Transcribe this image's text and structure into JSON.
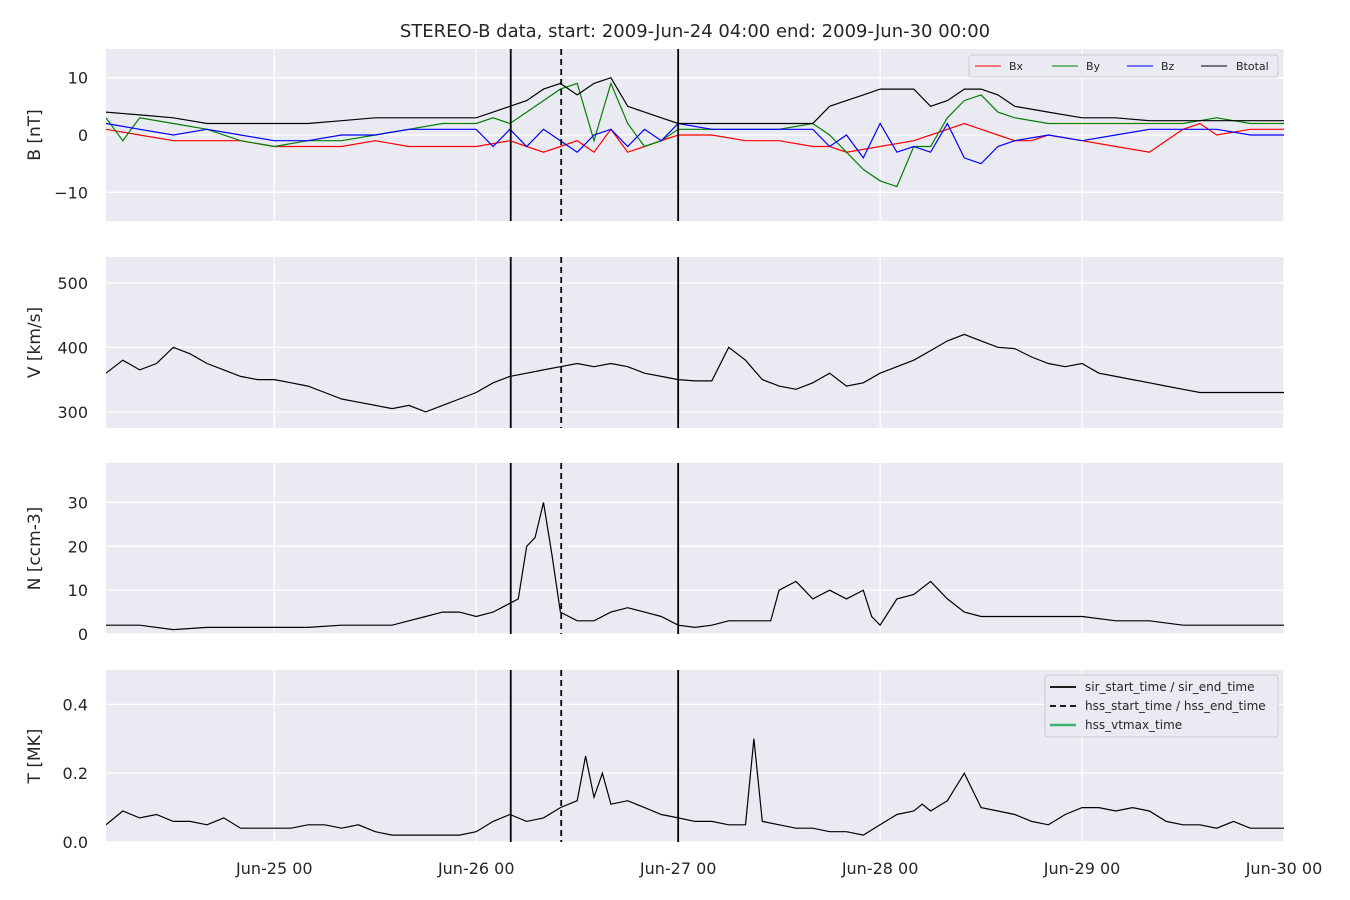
{
  "title": "STEREO-B data, start: 2009-Jun-24 04:00  end: 2009-Jun-30 00:00",
  "x_tick_labels": [
    "Jun-25 00",
    "Jun-26 00",
    "Jun-27 00",
    "Jun-28 00",
    "Jun-29 00",
    "Jun-30 00"
  ],
  "colors": {
    "background": "#eaeaf2",
    "grid": "#ffffff",
    "bx": "#ff0000",
    "by": "#008000",
    "bz": "#0000ff",
    "btotal": "#000000",
    "vtmax": "#3cb371"
  },
  "chart_data": [
    {
      "type": "line",
      "panel": "magnetic_field",
      "ylabel": "B [nT]",
      "xlim": [
        4,
        144
      ],
      "x_units": "hours since 2009-Jun-24 00:00",
      "ylim": [
        -15,
        15
      ],
      "yticks": [
        -10,
        0,
        10
      ],
      "ytick_labels": [
        "−10",
        "0",
        "10"
      ],
      "grid": true,
      "legend": "top-right",
      "series": [
        {
          "name": "Bx",
          "color": "#ff0000",
          "x": [
            4,
            8,
            12,
            16,
            20,
            24,
            28,
            32,
            36,
            40,
            44,
            48,
            52,
            54,
            56,
            58,
            60,
            62,
            64,
            66,
            68,
            70,
            72,
            76,
            80,
            84,
            88,
            90,
            92,
            96,
            100,
            102,
            104,
            106,
            108,
            110,
            112,
            114,
            116,
            120,
            124,
            128,
            130,
            132,
            134,
            136,
            140,
            144
          ],
          "y": [
            1,
            0,
            -1,
            -1,
            -1,
            -2,
            -2,
            -2,
            -1,
            -2,
            -2,
            -2,
            -1,
            -2,
            -3,
            -2,
            -1,
            -3,
            1,
            -3,
            -2,
            -1,
            0,
            0,
            -1,
            -1,
            -2,
            -2,
            -3,
            -2,
            -1,
            0,
            1,
            2,
            1,
            0,
            -1,
            -1,
            0,
            -1,
            -2,
            -3,
            -1,
            1,
            2,
            0,
            1,
            1
          ]
        },
        {
          "name": "By",
          "color": "#008000",
          "x": [
            4,
            6,
            8,
            12,
            16,
            20,
            24,
            28,
            32,
            36,
            40,
            44,
            48,
            50,
            52,
            54,
            56,
            58,
            60,
            62,
            64,
            66,
            68,
            70,
            72,
            76,
            80,
            84,
            88,
            90,
            92,
            94,
            96,
            98,
            100,
            102,
            104,
            106,
            108,
            110,
            112,
            116,
            120,
            124,
            128,
            132,
            136,
            140,
            144
          ],
          "y": [
            3,
            -1,
            3,
            2,
            1,
            -1,
            -2,
            -1,
            -1,
            0,
            1,
            2,
            2,
            3,
            2,
            4,
            6,
            8,
            9,
            -1,
            9,
            2,
            -2,
            -1,
            1,
            1,
            1,
            1,
            2,
            0,
            -3,
            -6,
            -8,
            -9,
            -2,
            -2,
            3,
            6,
            7,
            4,
            3,
            2,
            2,
            2,
            2,
            2,
            3,
            2,
            2
          ]
        },
        {
          "name": "Bz",
          "color": "#0000ff",
          "x": [
            4,
            8,
            12,
            16,
            20,
            24,
            28,
            32,
            36,
            40,
            44,
            48,
            50,
            52,
            54,
            56,
            58,
            60,
            62,
            64,
            66,
            68,
            70,
            72,
            76,
            80,
            84,
            88,
            90,
            92,
            94,
            96,
            98,
            100,
            102,
            104,
            106,
            108,
            110,
            112,
            116,
            120,
            124,
            128,
            132,
            136,
            140,
            144
          ],
          "y": [
            2,
            1,
            0,
            1,
            0,
            -1,
            -1,
            0,
            0,
            1,
            1,
            1,
            -2,
            1,
            -2,
            1,
            -1,
            -3,
            0,
            1,
            -2,
            1,
            -1,
            2,
            1,
            1,
            1,
            1,
            -2,
            0,
            -4,
            2,
            -3,
            -2,
            -3,
            2,
            -4,
            -5,
            -2,
            -1,
            0,
            -1,
            0,
            1,
            1,
            1,
            0,
            0
          ]
        },
        {
          "name": "Btotal",
          "color": "#000000",
          "x": [
            4,
            8,
            12,
            16,
            20,
            24,
            28,
            32,
            36,
            40,
            44,
            48,
            50,
            52,
            54,
            56,
            58,
            60,
            62,
            64,
            66,
            68,
            70,
            72,
            76,
            80,
            84,
            88,
            90,
            92,
            94,
            96,
            98,
            100,
            102,
            104,
            106,
            108,
            110,
            112,
            116,
            120,
            124,
            128,
            132,
            136,
            140,
            144
          ],
          "y": [
            4,
            3.5,
            3,
            2,
            2,
            2,
            2,
            2.5,
            3,
            3,
            3,
            3,
            4,
            5,
            6,
            8,
            9,
            7,
            9,
            10,
            5,
            4,
            3,
            2,
            2,
            2,
            2,
            2,
            5,
            6,
            7,
            8,
            8,
            8,
            5,
            6,
            8,
            8,
            7,
            5,
            4,
            3,
            3,
            2.5,
            2.5,
            2.5,
            2.5,
            2.5
          ]
        }
      ]
    },
    {
      "type": "line",
      "panel": "speed",
      "ylabel": "V [km/s]",
      "xlim": [
        4,
        144
      ],
      "ylim": [
        275,
        540
      ],
      "yticks": [
        300,
        400,
        500
      ],
      "grid": true,
      "series": [
        {
          "color": "#000000",
          "x": [
            4,
            6,
            8,
            10,
            12,
            14,
            16,
            18,
            20,
            22,
            24,
            26,
            28,
            30,
            32,
            34,
            36,
            38,
            40,
            42,
            44,
            46,
            48,
            50,
            52,
            54,
            56,
            58,
            60,
            62,
            64,
            66,
            68,
            70,
            72,
            74,
            76,
            78,
            80,
            82,
            83,
            84,
            86,
            88,
            90,
            92,
            94,
            96,
            98,
            100,
            102,
            104,
            106,
            108,
            110,
            112,
            114,
            116,
            118,
            120,
            122,
            124,
            126,
            128,
            130,
            132,
            134,
            136,
            138,
            140,
            142,
            144
          ],
          "y": [
            360,
            380,
            365,
            375,
            400,
            390,
            375,
            365,
            355,
            350,
            350,
            345,
            340,
            330,
            320,
            315,
            310,
            305,
            310,
            300,
            310,
            320,
            330,
            345,
            355,
            360,
            365,
            370,
            375,
            370,
            375,
            370,
            360,
            355,
            350,
            348,
            348,
            400,
            380,
            350,
            345,
            340,
            335,
            345,
            360,
            340,
            345,
            360,
            370,
            380,
            395,
            410,
            420,
            410,
            400,
            398,
            385,
            375,
            370,
            375,
            360,
            355,
            350,
            345,
            340,
            335,
            330,
            330,
            330,
            330,
            330,
            330
          ]
        }
      ]
    },
    {
      "type": "line",
      "panel": "density",
      "ylabel": "N [ccm-3]",
      "xlim": [
        4,
        144
      ],
      "ylim": [
        0,
        39
      ],
      "yticks": [
        0,
        10,
        20,
        30
      ],
      "grid": true,
      "series": [
        {
          "color": "#000000",
          "x": [
            4,
            8,
            12,
            16,
            20,
            24,
            28,
            32,
            36,
            38,
            40,
            42,
            44,
            46,
            48,
            50,
            51,
            52,
            53,
            54,
            55,
            56,
            57,
            58,
            60,
            62,
            64,
            66,
            68,
            70,
            72,
            74,
            76,
            78,
            80,
            82,
            83,
            84,
            86,
            88,
            90,
            92,
            94,
            95,
            96,
            98,
            100,
            102,
            104,
            106,
            108,
            110,
            112,
            116,
            120,
            124,
            128,
            132,
            136,
            140,
            144
          ],
          "y": [
            2,
            2,
            1,
            1.5,
            1.5,
            1.5,
            1.5,
            2,
            2,
            2,
            3,
            4,
            5,
            5,
            4,
            5,
            6,
            7,
            8,
            20,
            22,
            30,
            18,
            5,
            3,
            3,
            5,
            6,
            5,
            4,
            2,
            1.5,
            2,
            3,
            3,
            3,
            3,
            10,
            12,
            8,
            10,
            8,
            10,
            4,
            2,
            8,
            9,
            12,
            8,
            5,
            4,
            4,
            4,
            4,
            4,
            3,
            3,
            2,
            2,
            2,
            2
          ]
        }
      ]
    },
    {
      "type": "line",
      "panel": "temperature",
      "ylabel": "T [MK]",
      "xlim": [
        4,
        144
      ],
      "ylim": [
        0,
        0.5
      ],
      "yticks": [
        0.0,
        0.2,
        0.4
      ],
      "ytick_labels": [
        "0.0",
        "0.2",
        "0.4"
      ],
      "grid": true,
      "legend": "top-right",
      "series": [
        {
          "color": "#000000",
          "x": [
            4,
            6,
            8,
            10,
            12,
            14,
            16,
            18,
            20,
            22,
            24,
            26,
            28,
            30,
            32,
            34,
            36,
            38,
            40,
            42,
            44,
            46,
            48,
            50,
            52,
            54,
            56,
            58,
            60,
            61,
            62,
            63,
            64,
            66,
            68,
            70,
            72,
            74,
            76,
            78,
            80,
            81,
            82,
            84,
            86,
            88,
            90,
            92,
            94,
            96,
            98,
            100,
            101,
            102,
            104,
            106,
            108,
            110,
            112,
            114,
            116,
            118,
            120,
            122,
            124,
            126,
            128,
            130,
            132,
            134,
            136,
            138,
            140,
            142,
            144
          ],
          "y": [
            0.05,
            0.09,
            0.07,
            0.08,
            0.06,
            0.06,
            0.05,
            0.07,
            0.04,
            0.04,
            0.04,
            0.04,
            0.05,
            0.05,
            0.04,
            0.05,
            0.03,
            0.02,
            0.02,
            0.02,
            0.02,
            0.02,
            0.03,
            0.06,
            0.08,
            0.06,
            0.07,
            0.1,
            0.12,
            0.25,
            0.13,
            0.2,
            0.11,
            0.12,
            0.1,
            0.08,
            0.07,
            0.06,
            0.06,
            0.05,
            0.05,
            0.3,
            0.06,
            0.05,
            0.04,
            0.04,
            0.03,
            0.03,
            0.02,
            0.05,
            0.08,
            0.09,
            0.11,
            0.09,
            0.12,
            0.2,
            0.1,
            0.09,
            0.08,
            0.06,
            0.05,
            0.08,
            0.1,
            0.1,
            0.09,
            0.1,
            0.09,
            0.06,
            0.05,
            0.05,
            0.04,
            0.06,
            0.04,
            0.04,
            0.04
          ]
        }
      ]
    }
  ],
  "events": [
    {
      "label": "sir_start_time / sir_end_time",
      "style": "solid",
      "color": "#000000",
      "x": [
        52.1,
        72.0
      ]
    },
    {
      "label": "hss_start_time / hss_end_time",
      "style": "dashed",
      "color": "#000000",
      "x": [
        58.1
      ]
    },
    {
      "label": "hss_vtmax_time",
      "style": "solid",
      "color": "#3cb371",
      "x": []
    }
  ]
}
